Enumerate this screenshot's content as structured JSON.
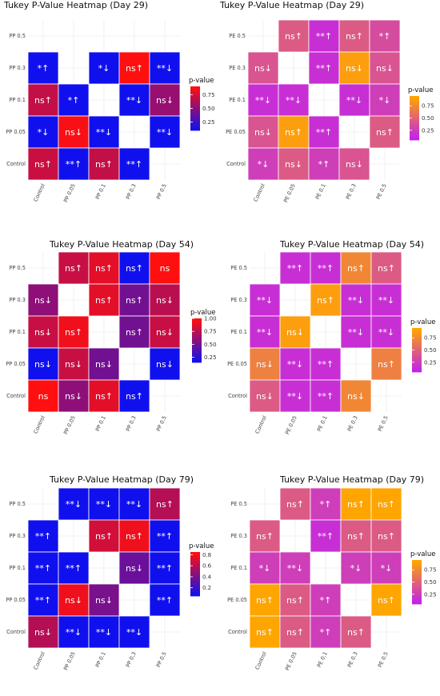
{
  "chart_data": [
    {
      "type": "heatmap",
      "title": "Tukey P-Value Heatmap (Day 29)",
      "labels": [
        "Control",
        "PP 0.05",
        "PP 0.1",
        "PP 0.3",
        "PP 0.5"
      ],
      "legend": {
        "title": "p-value",
        "ticks": [
          0.25,
          0.5,
          0.75
        ],
        "range": [
          0.1,
          0.9
        ],
        "low": "#1010ee",
        "high": "#ff0f0f"
      },
      "cells": [
        [
          null,
          null,
          null,
          null,
          null
        ],
        [
          {
            "v": 0.1,
            "t": "*↑"
          },
          null,
          {
            "v": 0.1,
            "t": "*↓"
          },
          {
            "v": 0.9,
            "t": "ns↑"
          },
          {
            "v": 0.1,
            "t": "**↓"
          }
        ],
        [
          {
            "v": 0.7,
            "t": "ns↑"
          },
          {
            "v": 0.1,
            "t": "*↑"
          },
          null,
          {
            "v": 0.1,
            "t": "**↓"
          },
          {
            "v": 0.55,
            "t": "ns↓"
          }
        ],
        [
          {
            "v": 0.1,
            "t": "*↓"
          },
          {
            "v": 0.88,
            "t": "ns↓"
          },
          {
            "v": 0.1,
            "t": "**↓"
          },
          null,
          {
            "v": 0.1,
            "t": "**↓"
          }
        ],
        [
          {
            "v": 0.72,
            "t": "ns↑"
          },
          {
            "v": 0.1,
            "t": "**↑"
          },
          {
            "v": 0.7,
            "t": "ns↑"
          },
          {
            "v": 0.1,
            "t": "**↑"
          },
          null
        ]
      ]
    },
    {
      "type": "heatmap",
      "title": "Tukey P-Value Heatmap (Day 29)",
      "labels": [
        "Control",
        "PE 0.05",
        "PE 0.1",
        "PE 0.3",
        "PE 0.5"
      ],
      "legend": {
        "title": "p-value",
        "ticks": [
          0.25,
          0.5,
          0.75
        ],
        "range": [
          0.05,
          0.95
        ],
        "low": "#c020ee",
        "high": "#ffa500"
      },
      "cells": [
        [
          null,
          {
            "v": 0.45,
            "t": "ns↑"
          },
          {
            "v": 0.15,
            "t": "**↑"
          },
          {
            "v": 0.45,
            "t": "ns↑"
          },
          {
            "v": 0.35,
            "t": "*↑"
          }
        ],
        [
          {
            "v": 0.4,
            "t": "ns↓"
          },
          null,
          {
            "v": 0.15,
            "t": "**↑"
          },
          {
            "v": 0.9,
            "t": "ns↓"
          },
          {
            "v": 0.4,
            "t": "ns↓"
          }
        ],
        [
          {
            "v": 0.15,
            "t": "**↓"
          },
          {
            "v": 0.15,
            "t": "**↓"
          },
          null,
          {
            "v": 0.15,
            "t": "**↓"
          },
          {
            "v": 0.25,
            "t": "*↓"
          }
        ],
        [
          {
            "v": 0.4,
            "t": "ns↓"
          },
          {
            "v": 0.9,
            "t": "ns↑"
          },
          {
            "v": 0.15,
            "t": "**↑"
          },
          null,
          {
            "v": 0.45,
            "t": "ns↑"
          }
        ],
        [
          {
            "v": 0.25,
            "t": "*↓"
          },
          {
            "v": 0.45,
            "t": "ns↓"
          },
          {
            "v": 0.25,
            "t": "*↑"
          },
          {
            "v": 0.4,
            "t": "ns↓"
          },
          null
        ]
      ]
    },
    {
      "type": "heatmap",
      "title": "Tukey P-Value Heatmap (Day 54)",
      "labels": [
        "Control",
        "PP 0.05",
        "PP 0.1",
        "PP 0.3",
        "PP 0.5"
      ],
      "legend": {
        "title": "p-value",
        "ticks": [
          0.25,
          0.5,
          0.75,
          1.0
        ],
        "tick_labels": [
          "0.25",
          "0.50",
          "0.75",
          "1.00"
        ],
        "range": [
          0.15,
          1.0
        ],
        "low": "#1010ee",
        "high": "#ff0f0f"
      },
      "cells": [
        [
          null,
          {
            "v": 0.8,
            "t": "ns↑"
          },
          {
            "v": 0.9,
            "t": "ns↑"
          },
          {
            "v": 0.15,
            "t": "ns↑"
          },
          {
            "v": 1.0,
            "t": "ns"
          }
        ],
        [
          {
            "v": 0.6,
            "t": "ns↓"
          },
          null,
          {
            "v": 0.9,
            "t": "ns↑"
          },
          {
            "v": 0.5,
            "t": "ns↑"
          },
          {
            "v": 0.75,
            "t": "ns↓"
          }
        ],
        [
          {
            "v": 0.8,
            "t": "ns↓"
          },
          {
            "v": 0.95,
            "t": "ns↑"
          },
          null,
          {
            "v": 0.5,
            "t": "ns↑"
          },
          {
            "v": 0.8,
            "t": "ns↓"
          }
        ],
        [
          {
            "v": 0.15,
            "t": "ns↓"
          },
          {
            "v": 0.8,
            "t": "ns↓"
          },
          {
            "v": 0.5,
            "t": "ns↓"
          },
          null,
          {
            "v": 0.15,
            "t": "ns↓"
          }
        ],
        [
          {
            "v": 1.0,
            "t": "ns"
          },
          {
            "v": 0.6,
            "t": "ns↓"
          },
          {
            "v": 0.9,
            "t": "ns↑"
          },
          {
            "v": 0.15,
            "t": "ns↑"
          },
          null
        ]
      ]
    },
    {
      "type": "heatmap",
      "title": "Tukey P-Value Heatmap (Day 54)",
      "labels": [
        "Control",
        "PE 0.05",
        "PE 0.1",
        "PE 0.3",
        "PE 0.5"
      ],
      "legend": {
        "title": "p-value",
        "ticks": [
          0.25,
          0.5,
          0.75
        ],
        "range": [
          0.05,
          0.95
        ],
        "low": "#c020ee",
        "high": "#ffa500"
      },
      "cells": [
        [
          null,
          {
            "v": 0.15,
            "t": "**↑"
          },
          {
            "v": 0.15,
            "t": "**↑"
          },
          {
            "v": 0.75,
            "t": "ns↑"
          },
          {
            "v": 0.45,
            "t": "ns↑"
          }
        ],
        [
          {
            "v": 0.15,
            "t": "**↓"
          },
          null,
          {
            "v": 0.9,
            "t": "ns↑"
          },
          {
            "v": 0.15,
            "t": "**↓"
          },
          {
            "v": 0.15,
            "t": "**↓"
          }
        ],
        [
          {
            "v": 0.15,
            "t": "**↓"
          },
          {
            "v": 0.9,
            "t": "ns↓"
          },
          null,
          {
            "v": 0.15,
            "t": "**↓"
          },
          {
            "v": 0.15,
            "t": "**↓"
          }
        ],
        [
          {
            "v": 0.7,
            "t": "ns↓"
          },
          {
            "v": 0.15,
            "t": "**↓"
          },
          {
            "v": 0.15,
            "t": "**↑"
          },
          null,
          {
            "v": 0.7,
            "t": "ns↑"
          }
        ],
        [
          {
            "v": 0.45,
            "t": "ns↓"
          },
          {
            "v": 0.15,
            "t": "**↓"
          },
          {
            "v": 0.15,
            "t": "**↑"
          },
          {
            "v": 0.75,
            "t": "ns↓"
          },
          null
        ]
      ]
    },
    {
      "type": "heatmap",
      "title": "Tukey P-Value Heatmap (Day 79)",
      "labels": [
        "Control",
        "PP 0.05",
        "PP 0.1",
        "PP 0.3",
        "PP 0.5"
      ],
      "legend": {
        "title": "p-value",
        "ticks": [
          0.2,
          0.4,
          0.6,
          0.8
        ],
        "tick_labels": [
          "0.2",
          "0.4",
          "0.6",
          "0.8"
        ],
        "range": [
          0.05,
          0.85
        ],
        "low": "#1010ee",
        "high": "#ff0f0f"
      },
      "cells": [
        [
          null,
          {
            "v": 0.05,
            "t": "**↓"
          },
          {
            "v": 0.05,
            "t": "**↓"
          },
          {
            "v": 0.05,
            "t": "**↓"
          },
          {
            "v": 0.6,
            "t": "ns↑"
          }
        ],
        [
          {
            "v": 0.05,
            "t": "**↑"
          },
          null,
          {
            "v": 0.7,
            "t": "ns↑"
          },
          {
            "v": 0.8,
            "t": "ns↑"
          },
          {
            "v": 0.05,
            "t": "**↑"
          }
        ],
        [
          {
            "v": 0.05,
            "t": "**↑"
          },
          {
            "v": 0.05,
            "t": "**↑"
          },
          null,
          {
            "v": 0.35,
            "t": "ns↓"
          },
          {
            "v": 0.05,
            "t": "**↑"
          }
        ],
        [
          {
            "v": 0.05,
            "t": "**↑"
          },
          {
            "v": 0.8,
            "t": "ns↓"
          },
          {
            "v": 0.4,
            "t": "ns↓"
          },
          null,
          {
            "v": 0.05,
            "t": "**↑"
          }
        ],
        [
          {
            "v": 0.6,
            "t": "ns↓"
          },
          {
            "v": 0.05,
            "t": "**↓"
          },
          {
            "v": 0.05,
            "t": "**↓"
          },
          {
            "v": 0.05,
            "t": "**↓"
          },
          null
        ]
      ]
    },
    {
      "type": "heatmap",
      "title": "Tukey P-Value Heatmap (Day 79)",
      "labels": [
        "Control",
        "PE 0.05",
        "PE 0.1",
        "PE 0.3",
        "PE 0.5"
      ],
      "legend": {
        "title": "p-value",
        "ticks": [
          0.25,
          0.5,
          0.75
        ],
        "range": [
          0.05,
          0.95
        ],
        "low": "#c020ee",
        "high": "#ffa500"
      },
      "cells": [
        [
          null,
          {
            "v": 0.45,
            "t": "ns↑"
          },
          {
            "v": 0.25,
            "t": "*↑"
          },
          {
            "v": 0.95,
            "t": "ns↑"
          },
          {
            "v": 0.95,
            "t": "ns↑"
          }
        ],
        [
          {
            "v": 0.45,
            "t": "ns↑"
          },
          null,
          {
            "v": 0.15,
            "t": "**↑"
          },
          {
            "v": 0.45,
            "t": "ns↑"
          },
          {
            "v": 0.45,
            "t": "ns↑"
          }
        ],
        [
          {
            "v": 0.25,
            "t": "*↓"
          },
          {
            "v": 0.25,
            "t": "**↓"
          },
          null,
          {
            "v": 0.25,
            "t": "*↓"
          },
          {
            "v": 0.25,
            "t": "*↓"
          }
        ],
        [
          {
            "v": 0.95,
            "t": "ns↑"
          },
          {
            "v": 0.45,
            "t": "ns↑"
          },
          {
            "v": 0.25,
            "t": "*↑"
          },
          null,
          {
            "v": 0.95,
            "t": "ns↑"
          }
        ],
        [
          {
            "v": 0.95,
            "t": "ns↑"
          },
          {
            "v": 0.45,
            "t": "ns↑"
          },
          {
            "v": 0.25,
            "t": "*↑"
          },
          {
            "v": 0.45,
            "t": "ns↑"
          },
          null
        ]
      ]
    }
  ]
}
